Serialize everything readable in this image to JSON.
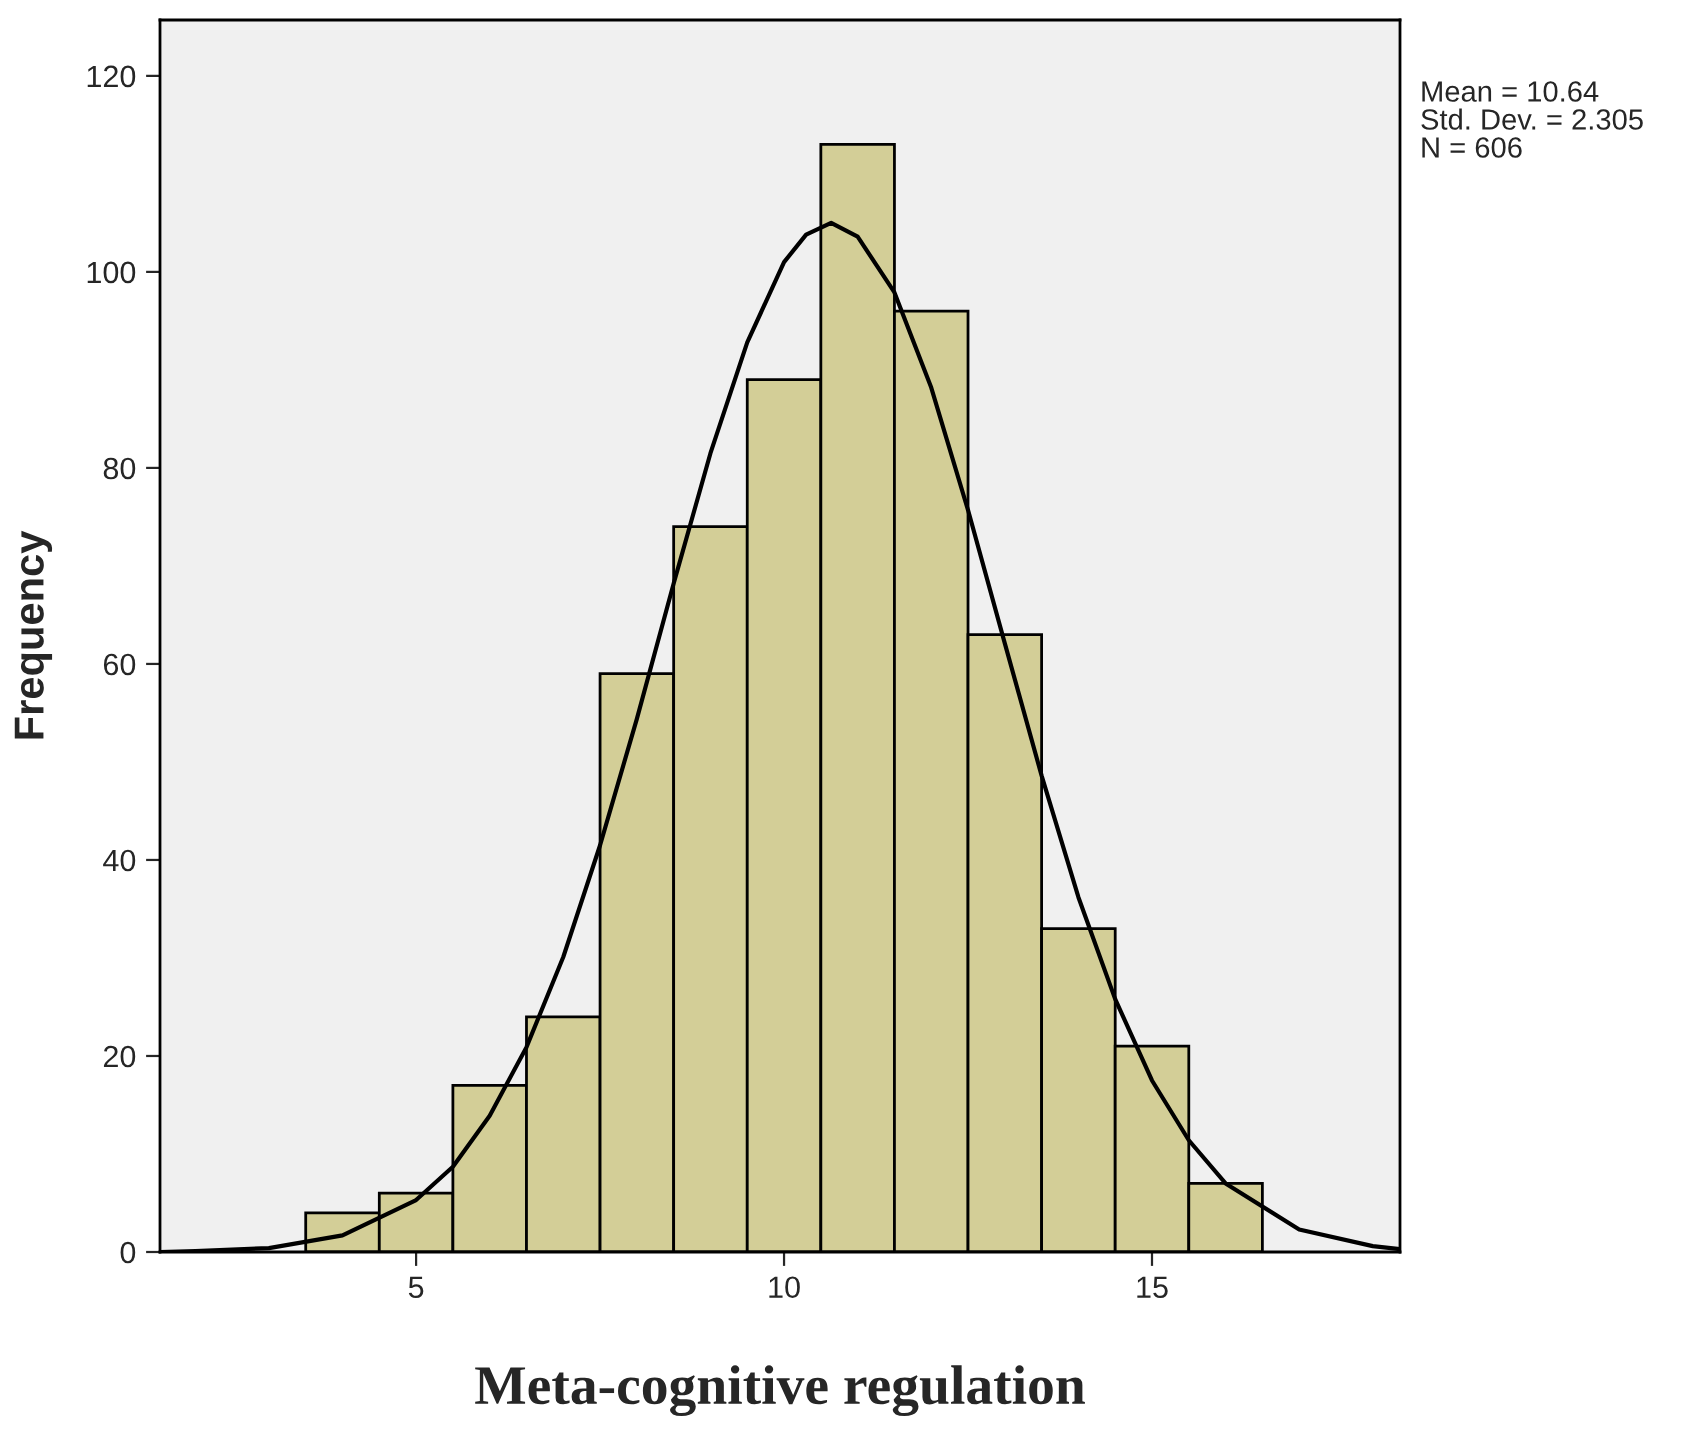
{
  "chart_data": {
    "type": "histogram",
    "xlabel": "Meta-cognitive regulation",
    "ylabel": "Frequency",
    "bins": [
      3.5,
      4.5,
      5.5,
      6.5,
      7.5,
      8.5,
      9.5,
      10.5,
      11.5,
      12.5,
      13.5,
      14.5,
      15.5,
      16.5
    ],
    "values": [
      4,
      6,
      17,
      24,
      59,
      74,
      89,
      113,
      96,
      63,
      33,
      21,
      7
    ],
    "color": "#d3ce97",
    "series": [
      {
        "type": "line",
        "color": "#000000",
        "x": [
          1.52,
          2,
          3,
          4,
          5,
          5.5,
          6,
          6.5,
          7,
          7.5,
          8,
          8.5,
          9,
          9.5,
          10,
          10.3,
          10.64,
          11,
          11.5,
          12,
          12.5,
          13,
          13.5,
          14,
          14.5,
          15,
          15.5,
          16,
          17,
          18,
          18.37
        ],
        "values": [
          0,
          0.1,
          0.4,
          1.7,
          5.3,
          8.7,
          13.9,
          20.9,
          30.1,
          41.5,
          54.4,
          68.2,
          81.5,
          92.8,
          101,
          103.8,
          105,
          103.6,
          97.9,
          88.2,
          75.7,
          62.1,
          48.6,
          36.2,
          25.8,
          17.5,
          11.4,
          7.0,
          2.3,
          0.6,
          0.3
        ]
      }
    ],
    "xlim": [
      1.52,
      18.37
    ],
    "xticks": [
      5,
      10,
      15
    ],
    "ylim": [
      0,
      125.7
    ],
    "yticks": [
      0,
      20,
      40,
      60,
      80,
      100,
      120
    ],
    "grid": false,
    "legend": false,
    "annotations": [
      "Mean = 10.64",
      "Std. Dev. = 2.305",
      "N = 606"
    ]
  }
}
